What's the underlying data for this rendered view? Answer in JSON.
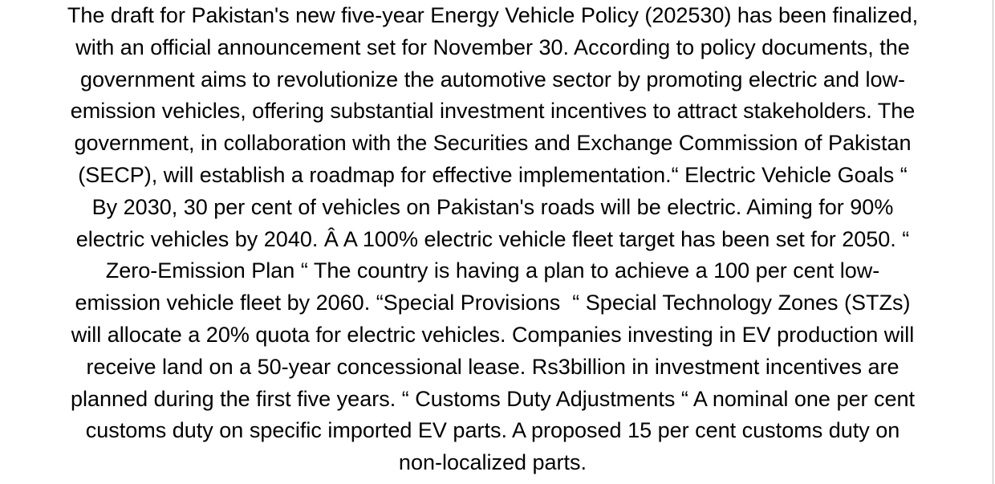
{
  "document": {
    "lines": [
      "The draft for Pakistan's new five-year Energy Vehicle Policy (202530) has been finalized,",
      "with an official announcement set for November 30. According to policy documents, the",
      "government aims to revolutionize the automotive sector by promoting electric and low-",
      "emission vehicles, offering substantial investment incentives to attract stakeholders. The",
      "government, in collaboration with the Securities and Exchange Commission of Pakistan",
      "(SECP), will establish a roadmap for effective implementation.“ Electric Vehicle Goals “",
      "By 2030, 30 per cent of vehicles on Pakistan's roads will be electric. Aiming for 90%",
      "electric vehicles by 2040. Â A 100% electric vehicle fleet target has been set for 2050. “",
      "Zero-Emission Plan “ The country is having a plan to achieve a 100 per cent low-",
      "emission vehicle fleet by 2060. “Special Provisions  “ Special Technology Zones (STZs)",
      "will allocate a 20% quota for electric vehicles. Companies investing in EV production will",
      "receive land on a 50-year concessional lease. Rs3billion in investment incentives are",
      "planned during the first five years. “ Customs Duty Adjustments “ A nominal one per cent",
      "customs duty on specific imported EV parts. A proposed 15 per cent customs duty on",
      "non-localized parts."
    ]
  }
}
